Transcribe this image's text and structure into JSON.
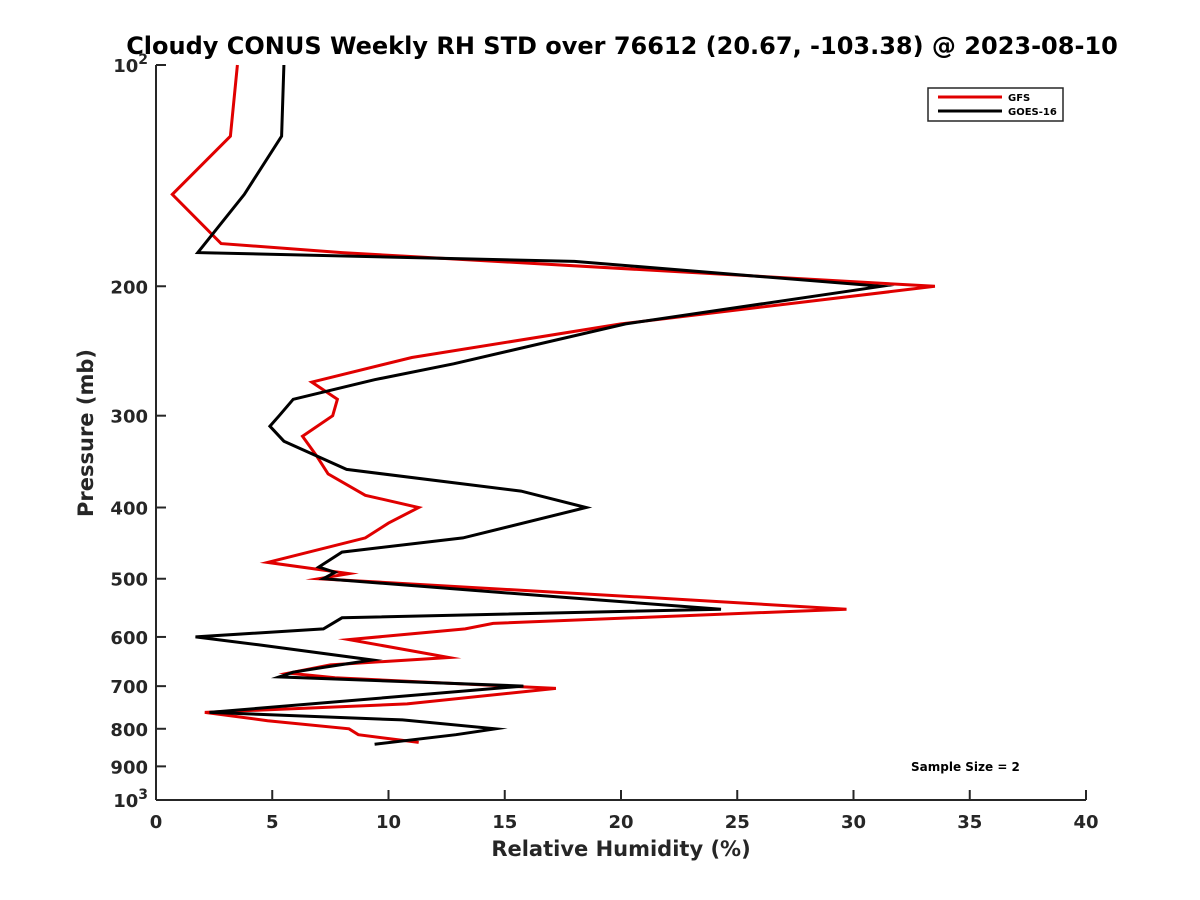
{
  "chart_data": {
    "type": "line",
    "title": "Cloudy CONUS Weekly RH STD over 76612 (20.67, -103.38) @ 2023-08-10",
    "xlabel": "Relative Humidity (%)",
    "ylabel": "Pressure (mb)",
    "xlim": [
      0,
      40
    ],
    "ylim": [
      100,
      1000
    ],
    "yscale": "log",
    "y_reversed": true,
    "grid": false,
    "x_ticks": [
      0,
      5,
      10,
      15,
      20,
      25,
      30,
      35,
      40
    ],
    "x_tick_labels": [
      "0",
      "5",
      "10",
      "15",
      "20",
      "25",
      "30",
      "35",
      "40"
    ],
    "y_ticks": [
      100,
      200,
      300,
      400,
      500,
      600,
      700,
      800,
      900,
      1000
    ],
    "y_tick_labels": [
      {
        "base": "10",
        "exp": "2"
      },
      {
        "base": "200",
        "exp": ""
      },
      {
        "base": "300",
        "exp": ""
      },
      {
        "base": "400",
        "exp": ""
      },
      {
        "base": "500",
        "exp": ""
      },
      {
        "base": "600",
        "exp": ""
      },
      {
        "base": "700",
        "exp": ""
      },
      {
        "base": "800",
        "exp": ""
      },
      {
        "base": "900",
        "exp": ""
      },
      {
        "base": "10",
        "exp": "3"
      }
    ],
    "legend_position": "top-right",
    "annotation": "Sample Size = 2",
    "series": [
      {
        "name": "GFS",
        "color": "#e00000",
        "points": [
          [
            3.5,
            100
          ],
          [
            3.2,
            125
          ],
          [
            0.7,
            150
          ],
          [
            2.8,
            175
          ],
          [
            8,
            180
          ],
          [
            33.5,
            200
          ],
          [
            20,
            225
          ],
          [
            11,
            250
          ],
          [
            6.7,
            270
          ],
          [
            7.8,
            285
          ],
          [
            7.6,
            300
          ],
          [
            6.3,
            320
          ],
          [
            6.9,
            340
          ],
          [
            7.4,
            360
          ],
          [
            9,
            385
          ],
          [
            11.3,
            400
          ],
          [
            10,
            420
          ],
          [
            9,
            440
          ],
          [
            4.8,
            475
          ],
          [
            8.3,
            492
          ],
          [
            7,
            500
          ],
          [
            21,
            530
          ],
          [
            29.7,
            550
          ],
          [
            14.5,
            575
          ],
          [
            13.3,
            585
          ],
          [
            8.3,
            605
          ],
          [
            12.6,
            640
          ],
          [
            7.5,
            655
          ],
          [
            5.7,
            672
          ],
          [
            7.7,
            682
          ],
          [
            17.2,
            705
          ],
          [
            10.8,
            740
          ],
          [
            2.1,
            760
          ],
          [
            4.8,
            780
          ],
          [
            8.3,
            800
          ],
          [
            8.7,
            815
          ],
          [
            11.3,
            835
          ]
        ]
      },
      {
        "name": "GOES-16",
        "color": "#000000",
        "points": [
          [
            5.5,
            100
          ],
          [
            5.4,
            125
          ],
          [
            3.8,
            150
          ],
          [
            1.8,
            180
          ],
          [
            18,
            185
          ],
          [
            31.2,
            200
          ],
          [
            20.2,
            225
          ],
          [
            12.8,
            255
          ],
          [
            9.4,
            268
          ],
          [
            5.9,
            285
          ],
          [
            5.3,
            300
          ],
          [
            4.9,
            310
          ],
          [
            5.5,
            325
          ],
          [
            8.2,
            355
          ],
          [
            15.7,
            380
          ],
          [
            18.5,
            400
          ],
          [
            13.2,
            440
          ],
          [
            8,
            460
          ],
          [
            7,
            482
          ],
          [
            7.7,
            490
          ],
          [
            7.2,
            500
          ],
          [
            17.5,
            530
          ],
          [
            24.3,
            550
          ],
          [
            8,
            565
          ],
          [
            7.2,
            585
          ],
          [
            1.7,
            600
          ],
          [
            4.4,
            615
          ],
          [
            9.3,
            645
          ],
          [
            7.2,
            660
          ],
          [
            5.9,
            670
          ],
          [
            5.3,
            680
          ],
          [
            15.8,
            700
          ],
          [
            2.3,
            760
          ],
          [
            10.6,
            778
          ],
          [
            14.6,
            800
          ],
          [
            12.9,
            815
          ],
          [
            9.4,
            840
          ]
        ]
      }
    ]
  }
}
